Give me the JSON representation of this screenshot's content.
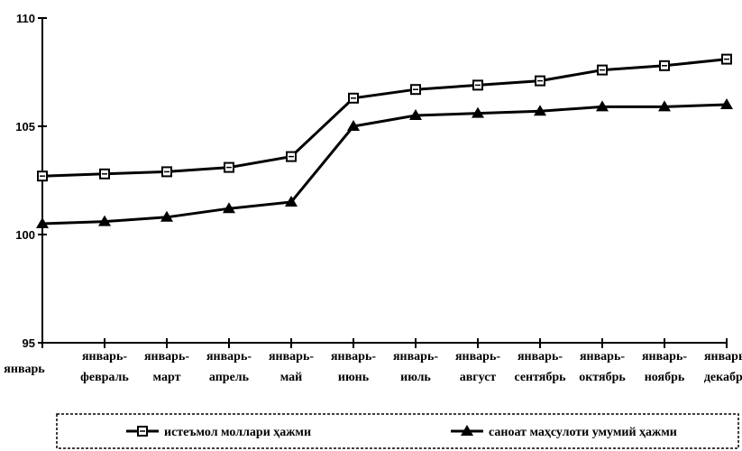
{
  "chart_data": {
    "type": "line",
    "title": "",
    "xlabel": "",
    "ylabel": "",
    "ylim": [
      95,
      110
    ],
    "yticks": [
      95,
      100,
      105,
      110
    ],
    "grid": false,
    "legend_position": "bottom",
    "categories": [
      [
        "январь"
      ],
      [
        "январь-",
        "февраль"
      ],
      [
        "январь-",
        "март"
      ],
      [
        "январь-",
        "апрель"
      ],
      [
        "январь-",
        "май"
      ],
      [
        "январь-",
        "июнь"
      ],
      [
        "январь-",
        "июль"
      ],
      [
        "январь-",
        "август"
      ],
      [
        "январь-",
        "сентябрь"
      ],
      [
        "январь-",
        "октябрь"
      ],
      [
        "январь-",
        "ноябрь"
      ],
      [
        "январь-",
        "декабрь"
      ]
    ],
    "series": [
      {
        "name": "истеъмол моллари ҳажми",
        "marker": "square",
        "values": [
          102.7,
          102.8,
          102.9,
          103.1,
          103.6,
          106.3,
          106.7,
          106.9,
          107.1,
          107.6,
          107.8,
          108.1
        ]
      },
      {
        "name": "саноат маҳсулоти умумий ҳажми",
        "marker": "triangle",
        "values": [
          100.5,
          100.6,
          100.8,
          101.2,
          101.5,
          105.0,
          105.5,
          105.6,
          105.7,
          105.9,
          105.9,
          106.0
        ]
      }
    ]
  }
}
